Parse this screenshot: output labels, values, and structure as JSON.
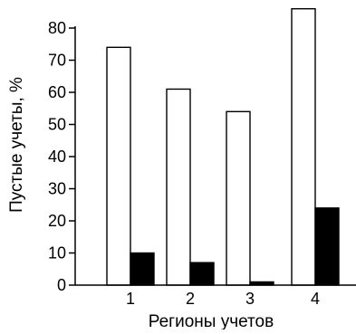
{
  "chart_data": {
    "type": "bar",
    "title": "",
    "xlabel": "Регионы учетов",
    "ylabel": "Пустые учеты, %",
    "categories": [
      "1",
      "2",
      "3",
      "4"
    ],
    "series": [
      {
        "color": "#ffffff",
        "values": [
          74,
          61,
          54,
          86
        ]
      },
      {
        "color": "#000000",
        "values": [
          10,
          7,
          1,
          24
        ]
      }
    ],
    "yticks": [
      0,
      10,
      20,
      30,
      40,
      50,
      60,
      70,
      80
    ],
    "ylim": [
      0,
      86
    ],
    "legend": "none",
    "grid": false
  }
}
